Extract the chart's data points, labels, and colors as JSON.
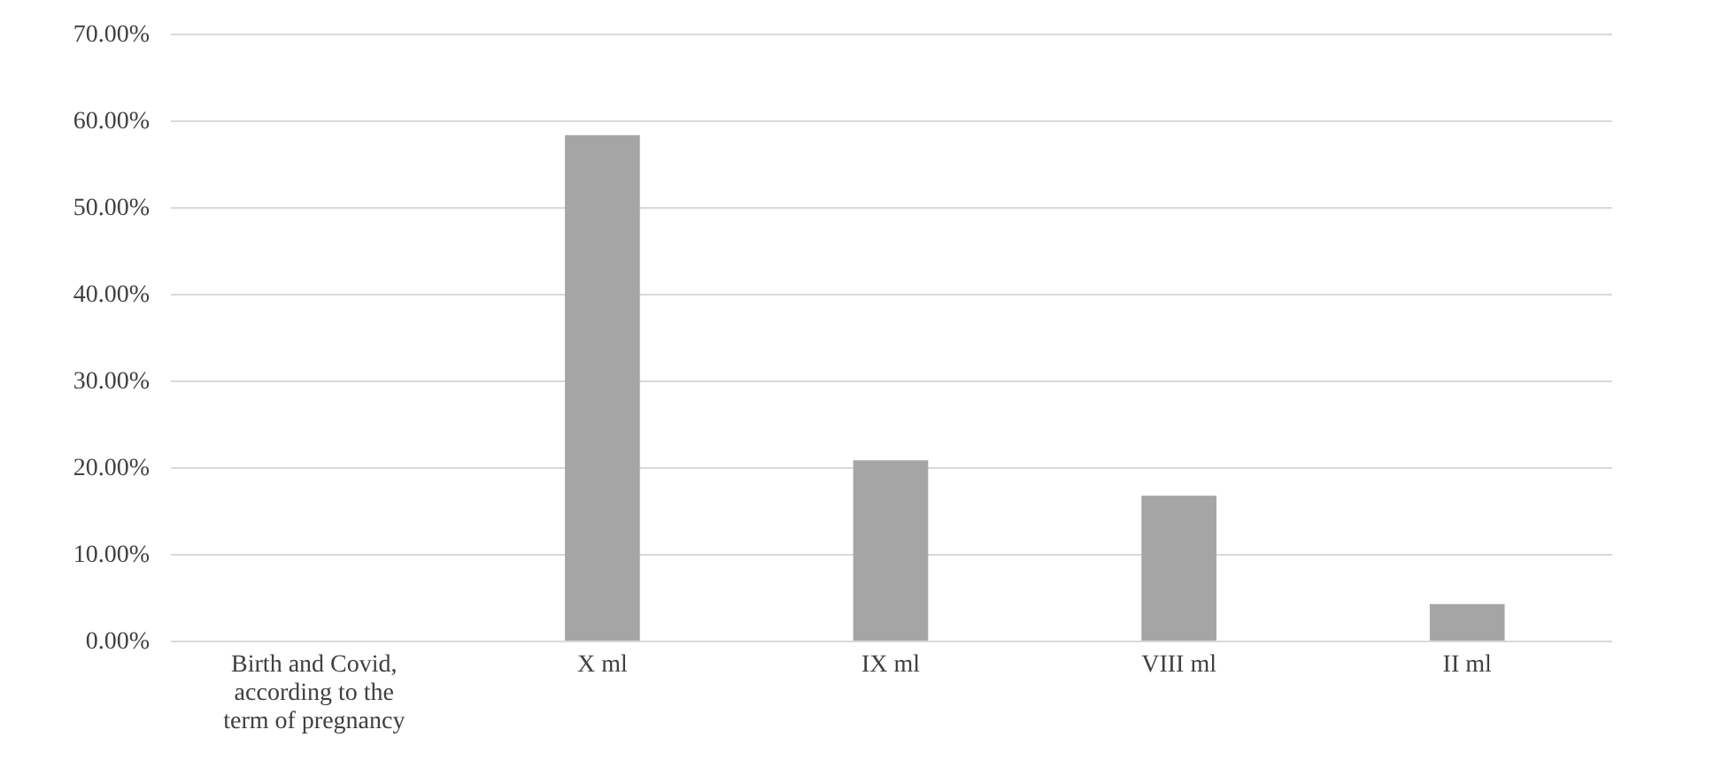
{
  "chart_data": {
    "type": "bar",
    "categories": [
      "Birth and Covid, according to the term of pregnancy",
      "X ml",
      "IX ml",
      "VIII ml",
      "II ml"
    ],
    "values": [
      null,
      58.3,
      20.8,
      16.7,
      4.2
    ],
    "color": "#a5a5a5",
    "ylim": [
      0,
      70
    ],
    "yticks": [
      {
        "value": 0,
        "label": "0.00%"
      },
      {
        "value": 10,
        "label": "10.00%"
      },
      {
        "value": 20,
        "label": "20.00%"
      },
      {
        "value": 30,
        "label": "30.00%"
      },
      {
        "value": 40,
        "label": "40.00%"
      },
      {
        "value": 50,
        "label": "50.00%"
      },
      {
        "value": 60,
        "label": "60.00%"
      },
      {
        "value": 70,
        "label": "70.00%"
      }
    ],
    "grid": "y"
  }
}
